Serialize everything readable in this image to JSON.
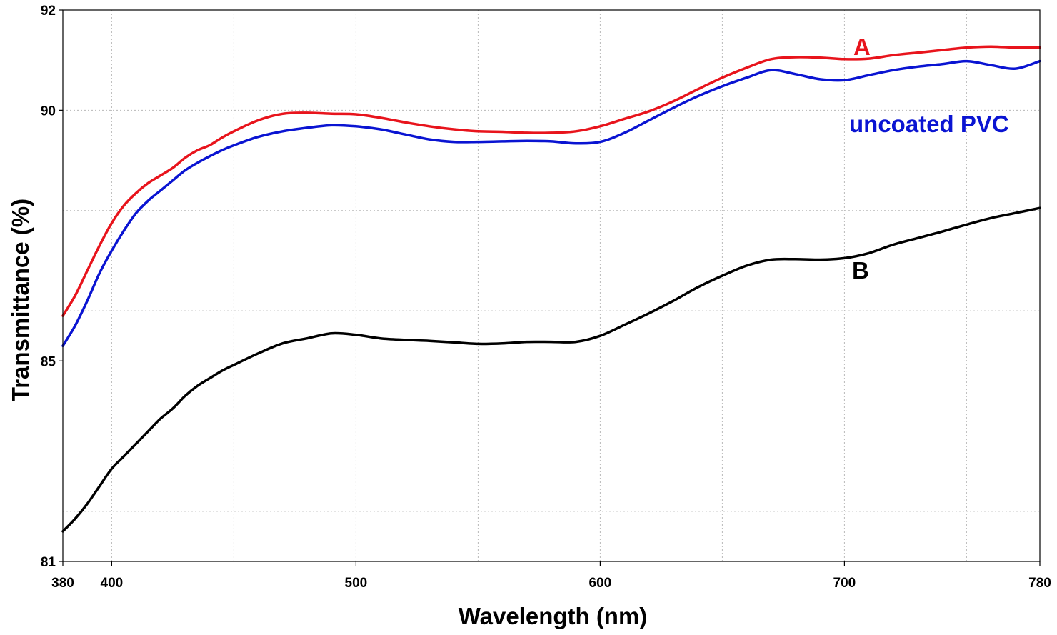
{
  "chart_data": {
    "type": "line",
    "xlabel": "Wavelength (nm)",
    "ylabel": "Transmittance (%)",
    "xlim": [
      380,
      780
    ],
    "ylim": [
      81,
      92
    ],
    "x_ticks": [
      380,
      400,
      500,
      600,
      700,
      780
    ],
    "x_tick_labels": [
      "380",
      "400",
      "500",
      "600",
      "700",
      "780"
    ],
    "y_ticks": [
      81,
      85,
      90,
      92
    ],
    "y_tick_labels": [
      "81",
      "85",
      "90",
      "92"
    ],
    "grid": true,
    "series": [
      {
        "name": "A",
        "color": "#e8141c",
        "x": [
          380,
          385,
          390,
          395,
          400,
          405,
          410,
          415,
          420,
          425,
          430,
          435,
          440,
          445,
          450,
          460,
          470,
          480,
          490,
          500,
          510,
          520,
          530,
          540,
          550,
          560,
          570,
          580,
          590,
          600,
          610,
          620,
          630,
          640,
          650,
          660,
          670,
          680,
          690,
          700,
          710,
          720,
          730,
          740,
          750,
          760,
          770,
          780
        ],
        "y": [
          85.9,
          86.3,
          86.8,
          87.3,
          87.75,
          88.1,
          88.35,
          88.55,
          88.7,
          88.85,
          89.05,
          89.2,
          89.3,
          89.45,
          89.58,
          89.8,
          89.93,
          89.95,
          89.93,
          89.92,
          89.85,
          89.76,
          89.68,
          89.62,
          89.58,
          89.57,
          89.55,
          89.55,
          89.58,
          89.68,
          89.83,
          89.98,
          90.18,
          90.42,
          90.65,
          90.85,
          91.02,
          91.06,
          91.05,
          91.02,
          91.03,
          91.1,
          91.15,
          91.2,
          91.25,
          91.27,
          91.25,
          91.25
        ]
      },
      {
        "name": "uncoated PVC",
        "color": "#0a14d2",
        "x": [
          380,
          385,
          390,
          395,
          400,
          405,
          410,
          415,
          420,
          425,
          430,
          435,
          440,
          445,
          450,
          460,
          470,
          480,
          490,
          500,
          510,
          520,
          530,
          540,
          550,
          560,
          570,
          580,
          590,
          600,
          610,
          620,
          630,
          640,
          650,
          660,
          670,
          680,
          690,
          700,
          710,
          720,
          730,
          740,
          750,
          760,
          770,
          780
        ],
        "y": [
          85.3,
          85.7,
          86.2,
          86.75,
          87.2,
          87.6,
          87.95,
          88.2,
          88.4,
          88.6,
          88.8,
          88.95,
          89.08,
          89.2,
          89.3,
          89.47,
          89.58,
          89.65,
          89.7,
          89.68,
          89.62,
          89.52,
          89.42,
          89.37,
          89.37,
          89.38,
          89.39,
          89.38,
          89.34,
          89.37,
          89.55,
          89.8,
          90.05,
          90.28,
          90.48,
          90.65,
          90.8,
          90.72,
          90.62,
          90.6,
          90.7,
          90.8,
          90.87,
          90.92,
          90.98,
          90.9,
          90.83,
          90.98
        ]
      },
      {
        "name": "B",
        "color": "#000000",
        "x": [
          380,
          385,
          390,
          395,
          400,
          405,
          410,
          415,
          420,
          425,
          430,
          435,
          440,
          445,
          450,
          460,
          470,
          480,
          490,
          500,
          510,
          520,
          530,
          540,
          550,
          560,
          570,
          580,
          590,
          600,
          610,
          620,
          630,
          640,
          650,
          660,
          670,
          680,
          690,
          700,
          710,
          720,
          730,
          740,
          750,
          760,
          770,
          780
        ],
        "y": [
          81.6,
          81.85,
          82.15,
          82.5,
          82.85,
          83.1,
          83.35,
          83.6,
          83.85,
          84.05,
          84.3,
          84.5,
          84.65,
          84.8,
          84.92,
          85.15,
          85.35,
          85.45,
          85.55,
          85.52,
          85.45,
          85.42,
          85.4,
          85.37,
          85.34,
          85.35,
          85.38,
          85.38,
          85.38,
          85.5,
          85.72,
          85.95,
          86.2,
          86.47,
          86.7,
          86.9,
          87.02,
          87.03,
          87.02,
          87.05,
          87.15,
          87.32,
          87.45,
          87.58,
          87.72,
          87.85,
          87.95,
          88.05
        ]
      }
    ],
    "annotations": [
      {
        "text": "A",
        "series": "A",
        "color": "#e8141c"
      },
      {
        "text": "uncoated PVC",
        "series": "uncoated PVC",
        "color": "#0a14d2"
      },
      {
        "text": "B",
        "series": "B",
        "color": "#000000"
      }
    ]
  }
}
